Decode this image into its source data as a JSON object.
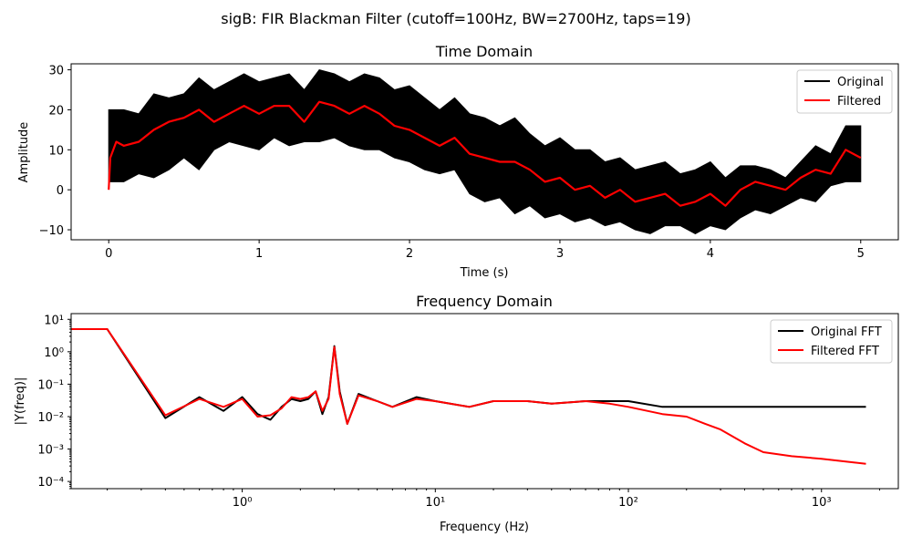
{
  "figure": {
    "suptitle": "sigB: FIR Blackman Filter (cutoff=100Hz, BW=2700Hz, taps=19)"
  },
  "chart_data": [
    {
      "type": "line",
      "title": "Time Domain",
      "xlabel": "Time (s)",
      "ylabel": "Amplitude",
      "xlim": [
        -0.25,
        5.25
      ],
      "ylim": [
        -12.5,
        31.5
      ],
      "xticks": [
        0,
        1,
        2,
        3,
        4,
        5
      ],
      "xtick_labels": [
        "0",
        "1",
        "2",
        "3",
        "4",
        "5"
      ],
      "yticks": [
        -10,
        0,
        10,
        20,
        30
      ],
      "ytick_labels": [
        "−10",
        "0",
        "10",
        "20",
        "30"
      ],
      "grid": false,
      "legend_position": "top-right",
      "series": [
        {
          "name": "Original",
          "color": "#000000",
          "envelope_upper": {
            "x": [
              0,
              0.1,
              0.2,
              0.3,
              0.4,
              0.5,
              0.6,
              0.7,
              0.8,
              0.9,
              1.0,
              1.1,
              1.2,
              1.3,
              1.4,
              1.5,
              1.6,
              1.7,
              1.8,
              1.9,
              2.0,
              2.1,
              2.2,
              2.3,
              2.4,
              2.5,
              2.6,
              2.7,
              2.8,
              2.9,
              3.0,
              3.1,
              3.2,
              3.3,
              3.4,
              3.5,
              3.6,
              3.7,
              3.8,
              3.9,
              4.0,
              4.1,
              4.2,
              4.3,
              4.4,
              4.5,
              4.6,
              4.7,
              4.8,
              4.9,
              5.0
            ],
            "y": [
              20,
              20,
              19,
              24,
              23,
              24,
              28,
              25,
              27,
              29,
              27,
              28,
              29,
              25,
              30,
              29,
              27,
              29,
              28,
              25,
              26,
              23,
              20,
              23,
              19,
              18,
              16,
              18,
              14,
              11,
              13,
              10,
              10,
              7,
              8,
              5,
              6,
              7,
              4,
              5,
              7,
              3,
              6,
              6,
              5,
              3,
              7,
              11,
              9,
              16,
              16
            ]
          },
          "envelope_lower": {
            "x": [
              0,
              0.1,
              0.2,
              0.3,
              0.4,
              0.5,
              0.6,
              0.7,
              0.8,
              0.9,
              1.0,
              1.1,
              1.2,
              1.3,
              1.4,
              1.5,
              1.6,
              1.7,
              1.8,
              1.9,
              2.0,
              2.1,
              2.2,
              2.3,
              2.4,
              2.5,
              2.6,
              2.7,
              2.8,
              2.9,
              3.0,
              3.1,
              3.2,
              3.3,
              3.4,
              3.5,
              3.6,
              3.7,
              3.8,
              3.9,
              4.0,
              4.1,
              4.2,
              4.3,
              4.4,
              4.5,
              4.6,
              4.7,
              4.8,
              4.9,
              5.0
            ],
            "y": [
              2,
              2,
              4,
              3,
              5,
              8,
              5,
              10,
              12,
              11,
              10,
              13,
              11,
              12,
              12,
              13,
              11,
              10,
              10,
              8,
              7,
              5,
              4,
              5,
              -1,
              -3,
              -2,
              -6,
              -4,
              -7,
              -6,
              -8,
              -7,
              -9,
              -8,
              -10,
              -11,
              -9,
              -9,
              -11,
              -9,
              -10,
              -7,
              -5,
              -6,
              -4,
              -2,
              -3,
              1,
              2,
              2
            ]
          }
        },
        {
          "name": "Filtered",
          "color": "#ff0000",
          "x": [
            0,
            0.01,
            0.05,
            0.1,
            0.2,
            0.3,
            0.4,
            0.5,
            0.6,
            0.7,
            0.8,
            0.9,
            1.0,
            1.1,
            1.2,
            1.3,
            1.4,
            1.5,
            1.6,
            1.7,
            1.8,
            1.9,
            2.0,
            2.1,
            2.2,
            2.3,
            2.4,
            2.5,
            2.6,
            2.7,
            2.8,
            2.9,
            3.0,
            3.1,
            3.2,
            3.3,
            3.4,
            3.5,
            3.6,
            3.7,
            3.8,
            3.9,
            4.0,
            4.1,
            4.2,
            4.3,
            4.4,
            4.5,
            4.6,
            4.7,
            4.8,
            4.9,
            5.0
          ],
          "y": [
            0,
            8,
            12,
            11,
            12,
            15,
            17,
            18,
            20,
            17,
            19,
            21,
            19,
            21,
            21,
            17,
            22,
            21,
            19,
            21,
            19,
            16,
            15,
            13,
            11,
            13,
            9,
            8,
            7,
            7,
            5,
            2,
            3,
            0,
            1,
            -2,
            0,
            -3,
            -2,
            -1,
            -4,
            -3,
            -1,
            -4,
            0,
            2,
            1,
            0,
            3,
            5,
            4,
            10,
            8
          ]
        }
      ]
    },
    {
      "type": "line",
      "title": "Frequency Domain",
      "xlabel": "Frequency (Hz)",
      "ylabel": "|Y(freq)|",
      "xscale": "log",
      "yscale": "log",
      "xlim": [
        0.13,
        2500
      ],
      "ylim": [
        6e-05,
        15
      ],
      "xticks": [
        1,
        10,
        100,
        1000
      ],
      "xtick_labels": [
        "10⁰",
        "10¹",
        "10²",
        "10³"
      ],
      "yticks": [
        0.0001,
        0.001,
        0.01,
        0.1,
        1,
        10
      ],
      "ytick_labels": [
        "10⁻⁴",
        "10⁻³",
        "10⁻²",
        "10⁻¹",
        "10⁰",
        "10¹"
      ],
      "grid": false,
      "legend_position": "top-right",
      "series": [
        {
          "name": "Original FFT",
          "color": "#000000",
          "x": [
            0.13,
            0.2,
            0.4,
            0.6,
            0.8,
            1.0,
            1.2,
            1.4,
            1.6,
            1.8,
            2.0,
            2.2,
            2.4,
            2.6,
            2.8,
            3.0,
            3.2,
            3.5,
            4.0,
            5.0,
            6.0,
            8.0,
            10,
            15,
            20,
            30,
            40,
            60,
            80,
            100,
            150,
            200,
            250,
            300,
            400,
            500,
            700,
            1000,
            1400,
            1700
          ],
          "y": [
            5,
            5,
            0.009,
            0.04,
            0.015,
            0.04,
            0.012,
            0.008,
            0.02,
            0.035,
            0.03,
            0.035,
            0.06,
            0.012,
            0.04,
            1.5,
            0.06,
            0.006,
            0.05,
            0.03,
            0.02,
            0.04,
            0.03,
            0.02,
            0.03,
            0.03,
            0.025,
            0.03,
            0.03,
            0.03,
            0.02,
            0.02,
            0.02,
            0.02,
            0.02,
            0.02,
            0.02,
            0.02,
            0.02,
            0.02
          ]
        },
        {
          "name": "Filtered FFT",
          "color": "#ff0000",
          "x": [
            0.13,
            0.2,
            0.4,
            0.6,
            0.8,
            1.0,
            1.2,
            1.4,
            1.6,
            1.8,
            2.0,
            2.2,
            2.4,
            2.6,
            2.8,
            3.0,
            3.2,
            3.5,
            4.0,
            5.0,
            6.0,
            8.0,
            10,
            15,
            20,
            30,
            40,
            60,
            80,
            100,
            150,
            200,
            250,
            300,
            400,
            500,
            700,
            1000,
            1400,
            1700
          ],
          "y": [
            5,
            5,
            0.011,
            0.035,
            0.02,
            0.035,
            0.01,
            0.011,
            0.018,
            0.04,
            0.035,
            0.04,
            0.06,
            0.015,
            0.035,
            1.4,
            0.05,
            0.006,
            0.045,
            0.03,
            0.02,
            0.035,
            0.03,
            0.02,
            0.03,
            0.03,
            0.025,
            0.03,
            0.025,
            0.02,
            0.012,
            0.01,
            0.006,
            0.004,
            0.0015,
            0.0008,
            0.0006,
            0.0005,
            0.0004,
            0.00035
          ]
        }
      ]
    }
  ]
}
